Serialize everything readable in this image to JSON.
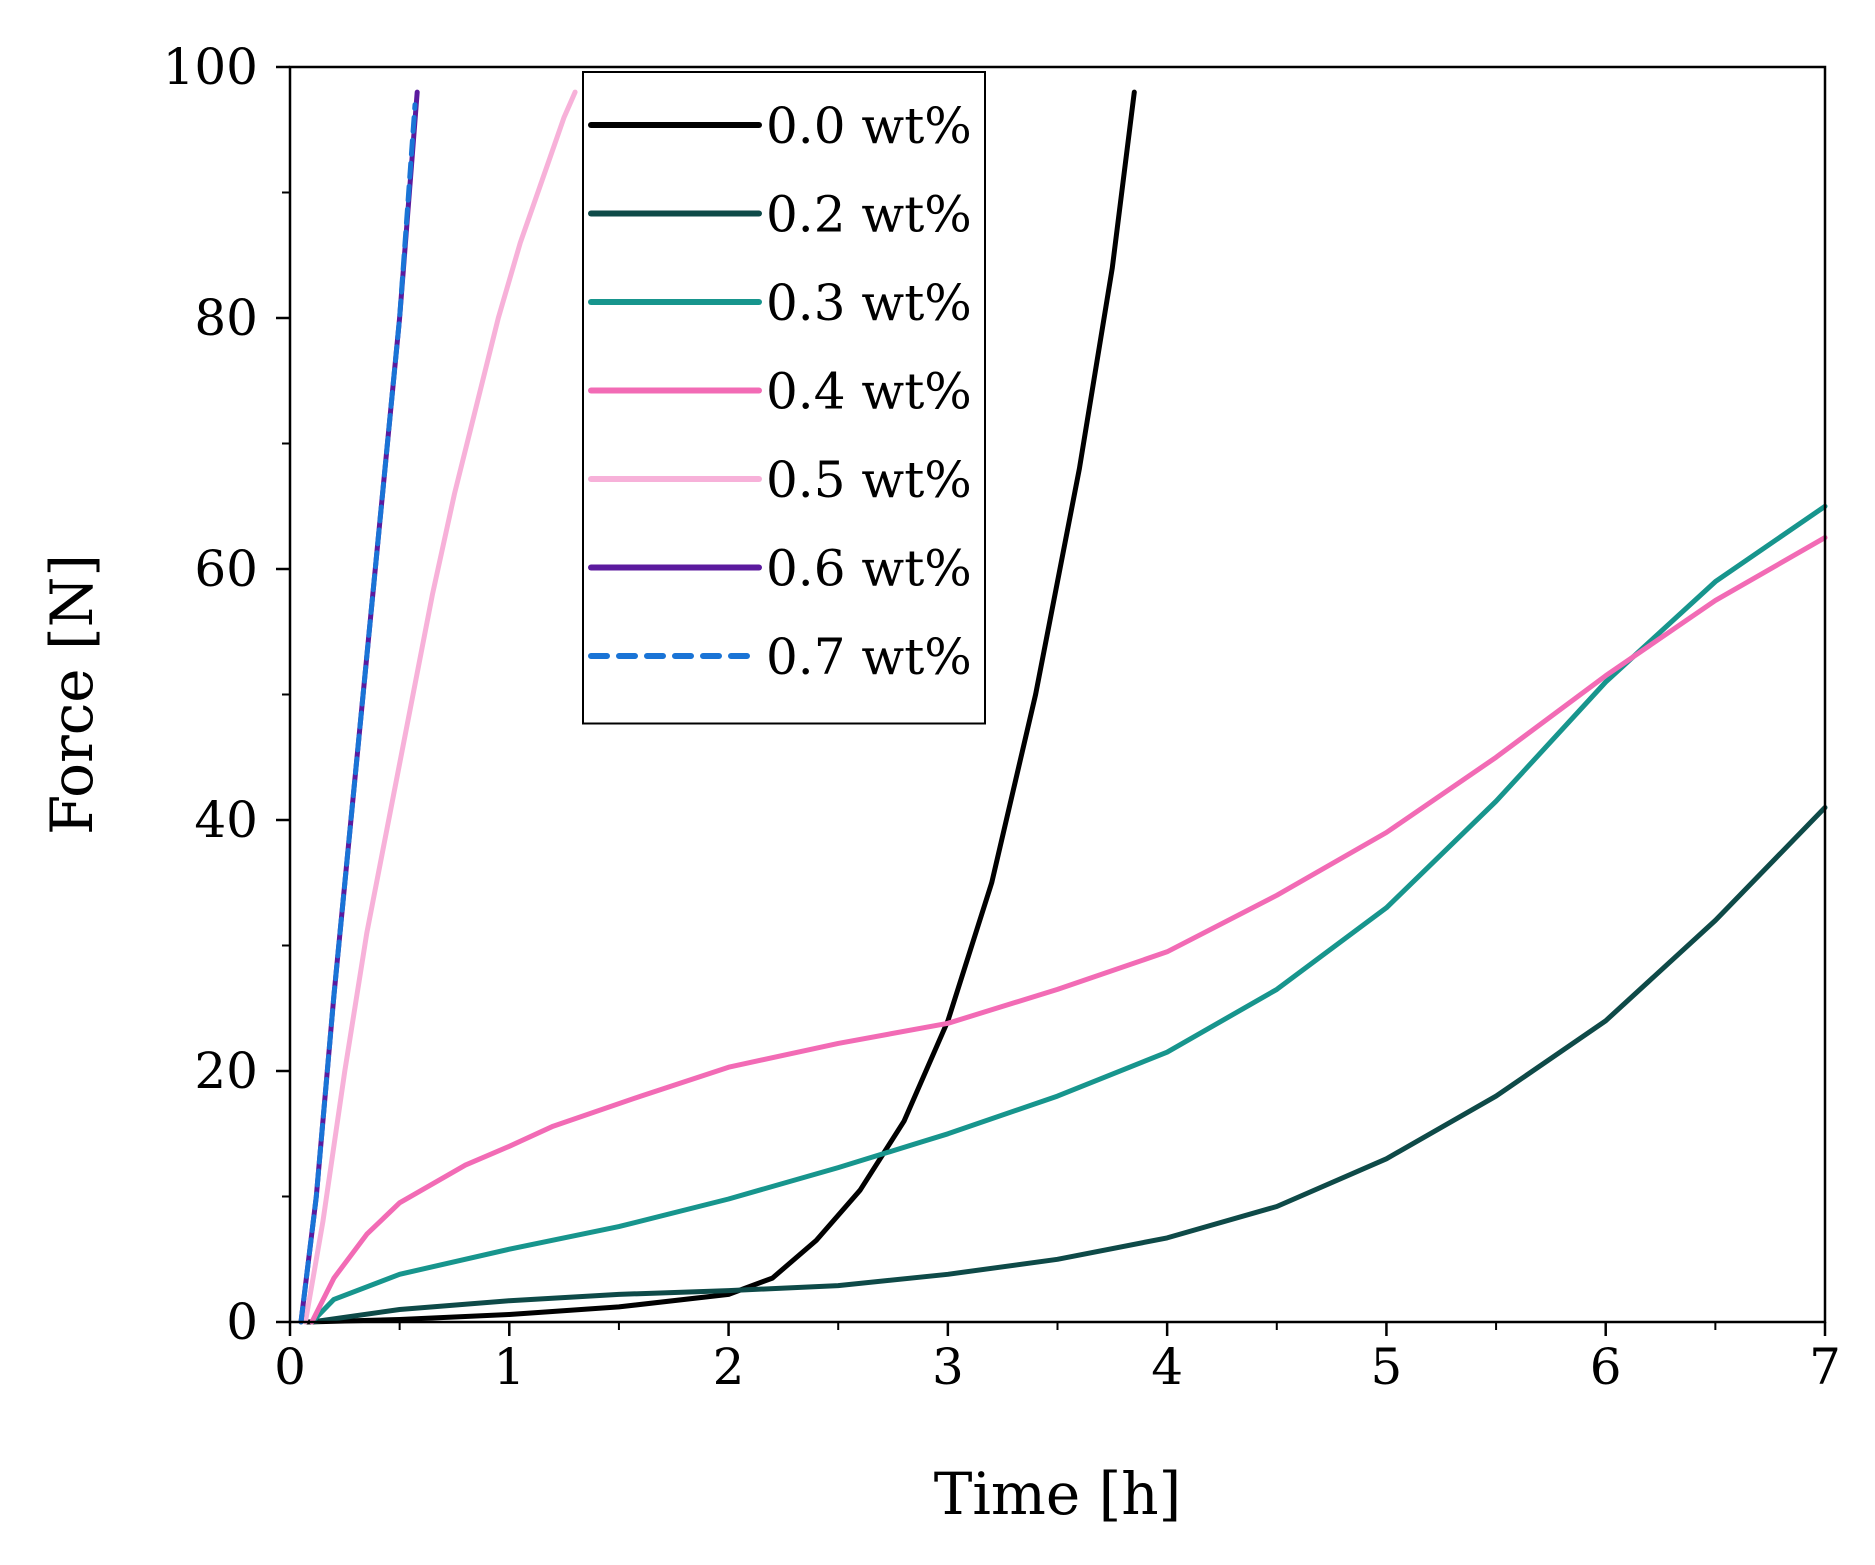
{
  "chart_data": {
    "type": "line",
    "title": "",
    "xlabel": "Time [h]",
    "ylabel": "Force [N]",
    "xlim": [
      0,
      7
    ],
    "ylim": [
      0,
      100
    ],
    "xticks": [
      0,
      1,
      2,
      3,
      4,
      5,
      6,
      7
    ],
    "xtick_labels": [
      "0",
      "1",
      "2",
      "3",
      "4",
      "5",
      "6",
      "7"
    ],
    "yticks": [
      0,
      20,
      40,
      60,
      80,
      100
    ],
    "ytick_labels": [
      "0",
      "20",
      "40",
      "60",
      "80",
      "100"
    ],
    "grid": false,
    "legend_position": "top-center",
    "series": [
      {
        "name": "0.0 wt%",
        "color": "#000000",
        "dash": "solid",
        "x": [
          0.08,
          0.5,
          1.0,
          1.5,
          2.0,
          2.2,
          2.4,
          2.6,
          2.8,
          3.0,
          3.2,
          3.4,
          3.6,
          3.75,
          3.85
        ],
        "y": [
          0,
          0.2,
          0.6,
          1.2,
          2.2,
          3.5,
          6.5,
          10.5,
          16,
          24,
          35,
          50,
          68,
          84,
          98
        ]
      },
      {
        "name": "0.2 wt%",
        "color": "#0e4a48",
        "dash": "solid",
        "x": [
          0.1,
          0.5,
          1.0,
          1.5,
          2.0,
          2.5,
          3.0,
          3.5,
          4.0,
          4.5,
          5.0,
          5.5,
          6.0,
          6.5,
          7.0
        ],
        "y": [
          0,
          1.0,
          1.7,
          2.2,
          2.5,
          2.9,
          3.8,
          5.0,
          6.7,
          9.2,
          13,
          18,
          24,
          32,
          41
        ]
      },
      {
        "name": "0.3 wt%",
        "color": "#17958d",
        "dash": "solid",
        "x": [
          0.1,
          0.2,
          0.5,
          1.0,
          1.5,
          2.0,
          2.5,
          3.0,
          3.5,
          4.0,
          4.5,
          5.0,
          5.5,
          6.0,
          6.5,
          7.0
        ],
        "y": [
          0,
          1.8,
          3.8,
          5.8,
          7.6,
          9.8,
          12.3,
          15,
          18,
          21.5,
          26.5,
          33,
          41.5,
          51,
          59,
          65
        ]
      },
      {
        "name": "0.4 wt%",
        "color": "#f26bb5",
        "dash": "solid",
        "x": [
          0.1,
          0.2,
          0.35,
          0.5,
          0.8,
          1.0,
          1.2,
          1.6,
          2.0,
          2.5,
          3.0,
          3.5,
          4.0,
          4.5,
          5.0,
          5.5,
          6.0,
          6.5,
          7.0
        ],
        "y": [
          0,
          3.5,
          7,
          9.5,
          12.5,
          14,
          15.6,
          18,
          20.3,
          22.2,
          23.8,
          26.5,
          29.5,
          34,
          39,
          45,
          51.5,
          57.5,
          62.5
        ]
      },
      {
        "name": "0.5 wt%",
        "color": "#f7b1d9",
        "dash": "solid",
        "x": [
          0.07,
          0.15,
          0.25,
          0.35,
          0.45,
          0.55,
          0.65,
          0.75,
          0.85,
          0.95,
          1.05,
          1.15,
          1.25,
          1.3
        ],
        "y": [
          0,
          8,
          20,
          31,
          40,
          49,
          58,
          66,
          73,
          80,
          86,
          91,
          96,
          98
        ]
      },
      {
        "name": "0.6 wt%",
        "color": "#5b1a9e",
        "dash": "solid",
        "x": [
          0.05,
          0.12,
          0.2,
          0.3,
          0.4,
          0.5,
          0.58
        ],
        "y": [
          0,
          10,
          26,
          44,
          62,
          80,
          98
        ]
      },
      {
        "name": "0.7 wt%",
        "color": "#1a74d6",
        "dash": "dashed",
        "x": [
          0.05,
          0.12,
          0.2,
          0.3,
          0.4,
          0.5,
          0.57
        ],
        "y": [
          0,
          10,
          26,
          44,
          62,
          80,
          97
        ]
      }
    ]
  }
}
